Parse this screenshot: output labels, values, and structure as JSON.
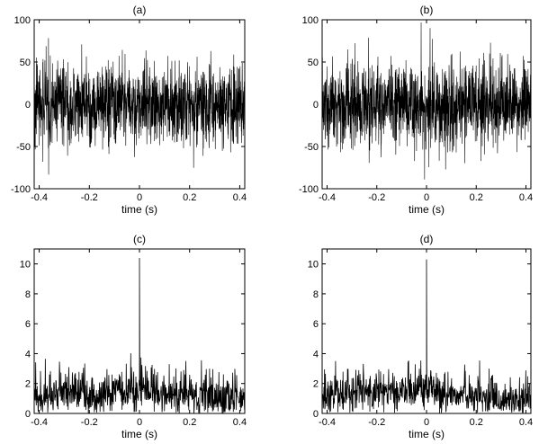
{
  "chart_data": [
    {
      "type": "line",
      "title": "(a)",
      "xlabel": "time (s)",
      "ylabel": "",
      "xlim": [
        -0.42,
        0.42
      ],
      "ylim": [
        -100,
        100
      ],
      "xticks": [
        "-0.4",
        "-0.2",
        "0",
        "0.2",
        "0.4"
      ],
      "yticks": [
        "-100",
        "-50",
        "0",
        "50",
        "100"
      ],
      "grid": false,
      "series": [
        {
          "values_note": "dense noise signal",
          "x": [
            -0.42,
            -0.4,
            -0.3,
            -0.2,
            -0.1,
            -0.02,
            0.0,
            0.02,
            0.1,
            0.2,
            0.3,
            0.4,
            0.42
          ],
          "y": [
            0,
            40,
            -55,
            60,
            -65,
            50,
            95,
            -75,
            55,
            -60,
            65,
            -70,
            0
          ]
        }
      ]
    },
    {
      "type": "line",
      "title": "(b)",
      "xlabel": "time (s)",
      "ylabel": "",
      "xlim": [
        -0.42,
        0.42
      ],
      "ylim": [
        -100,
        100
      ],
      "xticks": [
        "-0.4",
        "-0.2",
        "0",
        "0.2",
        "0.4"
      ],
      "yticks": [
        "-100",
        "-50",
        "0",
        "50",
        "100"
      ],
      "grid": false,
      "series": [
        {
          "x": [
            -0.42,
            -0.4,
            -0.3,
            -0.2,
            -0.1,
            -0.03,
            0.0,
            0.02,
            0.1,
            0.2,
            0.3,
            0.4,
            0.42
          ],
          "y": [
            0,
            60,
            -70,
            95,
            -85,
            100,
            100,
            -90,
            70,
            -65,
            70,
            -70,
            0
          ]
        }
      ]
    },
    {
      "type": "line",
      "title": "(c)",
      "xlabel": "time (s)",
      "ylabel": "",
      "xlim": [
        -0.42,
        0.42
      ],
      "ylim": [
        0,
        11
      ],
      "xticks": [
        "-0.4",
        "-0.2",
        "0",
        "0.2",
        "0.4"
      ],
      "yticks": [
        "0",
        "2",
        "4",
        "6",
        "8",
        "10"
      ],
      "grid": false,
      "peak": {
        "x": 0.0,
        "y": 10.4
      },
      "series": [
        {
          "x": [
            -0.42,
            -0.3,
            -0.2,
            -0.1,
            -0.05,
            0.0,
            0.05,
            0.1,
            0.2,
            0.3,
            0.42
          ],
          "y": [
            1.0,
            1.5,
            1.2,
            1.4,
            4.2,
            10.4,
            1.5,
            1.2,
            1.3,
            1.0,
            0.8
          ]
        }
      ]
    },
    {
      "type": "line",
      "title": "(d)",
      "xlabel": "time (s)",
      "ylabel": "",
      "xlim": [
        -0.42,
        0.42
      ],
      "ylim": [
        0,
        11
      ],
      "xticks": [
        "-0.4",
        "-0.2",
        "0",
        "0.2",
        "0.4"
      ],
      "yticks": [
        "0",
        "2",
        "4",
        "6",
        "8",
        "10"
      ],
      "grid": false,
      "peak": {
        "x": 0.0,
        "y": 10.3
      },
      "series": [
        {
          "x": [
            -0.42,
            -0.3,
            -0.2,
            -0.15,
            -0.1,
            0.0,
            0.05,
            0.1,
            0.2,
            0.3,
            0.42
          ],
          "y": [
            1.2,
            1.5,
            1.5,
            4.3,
            1.4,
            10.3,
            1.3,
            1.4,
            1.1,
            0.9,
            0.7
          ]
        }
      ]
    }
  ]
}
